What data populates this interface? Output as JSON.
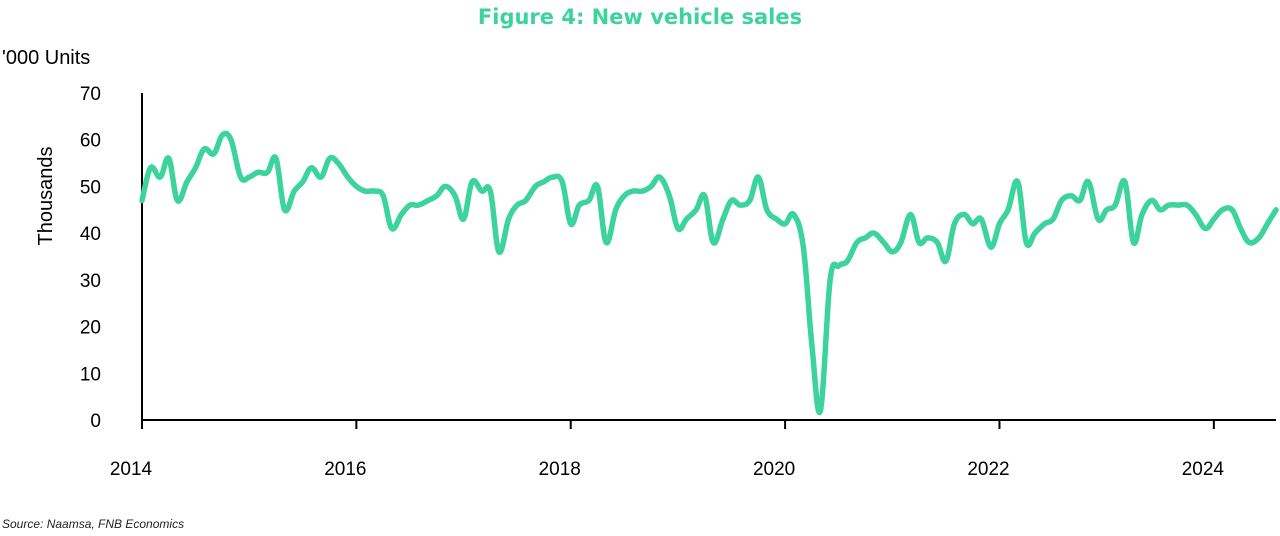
{
  "title": "Figure 4: New vehicle sales",
  "units_label": "'000 Units",
  "source": "Source: Naamsa, FNB Economics",
  "colors": {
    "line": "#3dd39c",
    "axis": "#000000",
    "title": "#3dd39c"
  },
  "chart_data": {
    "type": "line",
    "title": "Figure 4: New vehicle sales",
    "xlabel": "",
    "ylabel": "Thousands",
    "ylim": [
      0,
      70
    ],
    "yticks": [
      0,
      10,
      20,
      30,
      40,
      50,
      60,
      70
    ],
    "xlim": [
      2014.0,
      2024.58
    ],
    "xticks": [
      "2014",
      "2016",
      "2018",
      "2020",
      "2022",
      "2024"
    ],
    "grid": false,
    "legend": "none",
    "series": [
      {
        "name": "",
        "x": [
          2014.0,
          2014.08,
          2014.17,
          2014.25,
          2014.33,
          2014.42,
          2014.5,
          2014.58,
          2014.67,
          2014.75,
          2014.83,
          2014.92,
          2015.0,
          2015.08,
          2015.17,
          2015.25,
          2015.33,
          2015.42,
          2015.5,
          2015.58,
          2015.67,
          2015.75,
          2015.83,
          2015.92,
          2016.0,
          2016.08,
          2016.17,
          2016.25,
          2016.33,
          2016.42,
          2016.5,
          2016.58,
          2016.67,
          2016.75,
          2016.83,
          2016.92,
          2017.0,
          2017.08,
          2017.17,
          2017.25,
          2017.33,
          2017.42,
          2017.5,
          2017.58,
          2017.67,
          2017.75,
          2017.83,
          2017.92,
          2018.0,
          2018.08,
          2018.17,
          2018.25,
          2018.33,
          2018.42,
          2018.5,
          2018.58,
          2018.67,
          2018.75,
          2018.83,
          2018.92,
          2019.0,
          2019.08,
          2019.17,
          2019.25,
          2019.33,
          2019.42,
          2019.5,
          2019.58,
          2019.67,
          2019.75,
          2019.83,
          2019.92,
          2020.0,
          2020.08,
          2020.17,
          2020.25,
          2020.33,
          2020.42,
          2020.5,
          2020.58,
          2020.67,
          2020.75,
          2020.83,
          2020.92,
          2021.0,
          2021.08,
          2021.17,
          2021.25,
          2021.33,
          2021.42,
          2021.5,
          2021.58,
          2021.67,
          2021.75,
          2021.83,
          2021.92,
          2022.0,
          2022.08,
          2022.17,
          2022.25,
          2022.33,
          2022.42,
          2022.5,
          2022.58,
          2022.67,
          2022.75,
          2022.83,
          2022.92,
          2023.0,
          2023.08,
          2023.17,
          2023.25,
          2023.33,
          2023.42,
          2023.5,
          2023.58,
          2023.67,
          2023.75,
          2023.83,
          2023.92,
          2024.0,
          2024.08,
          2024.17,
          2024.25,
          2024.33,
          2024.42,
          2024.5,
          2024.58
        ],
        "values": [
          47,
          54,
          52,
          56,
          47,
          51,
          54,
          58,
          57,
          61,
          60,
          52,
          52,
          53,
          53,
          56,
          45,
          49,
          51,
          54,
          52,
          56,
          55,
          52,
          50,
          49,
          49,
          48,
          41,
          44,
          46,
          46,
          47,
          48,
          50,
          48,
          43,
          51,
          49,
          49,
          36,
          43,
          46,
          47,
          50,
          51,
          52,
          51,
          42,
          46,
          47,
          50,
          38,
          45,
          48,
          49,
          49,
          50,
          52,
          48,
          41,
          43,
          45,
          48,
          38,
          43,
          47,
          46,
          47,
          52,
          45,
          43,
          42,
          44,
          37,
          16,
          2,
          30,
          33,
          34,
          38,
          39,
          40,
          38,
          36,
          38,
          44,
          38,
          39,
          38,
          34,
          42,
          44,
          42,
          43,
          37,
          42,
          45,
          51,
          38,
          40,
          42,
          43,
          47,
          48,
          47,
          51,
          43,
          45,
          46,
          51,
          38,
          44,
          47,
          45,
          46,
          46,
          46,
          44,
          41,
          43,
          45,
          45,
          41,
          38,
          39,
          42,
          45
        ]
      }
    ]
  }
}
